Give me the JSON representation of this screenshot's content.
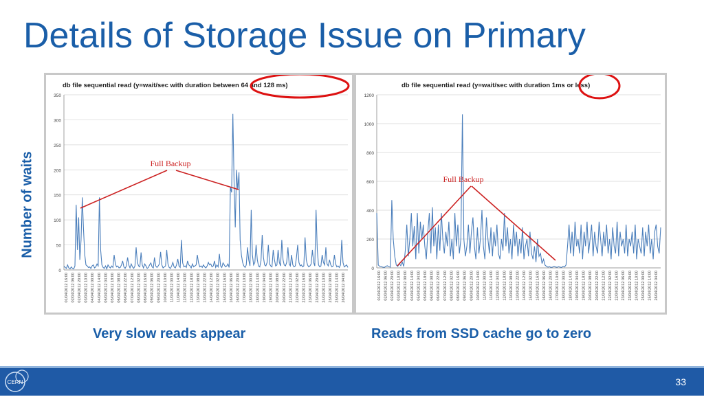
{
  "slide": {
    "title": "Details of Storage Issue on Primary",
    "side_label": "Number of waits",
    "caption_left": "Very slow reads appear",
    "caption_right": "Reads from SSD cache go to zero",
    "page_number": "33",
    "logo_text": "CERN"
  },
  "colors": {
    "accent": "#1a5ea8",
    "series": "#4a7ebb",
    "annotation": "#cc2222"
  },
  "chart_data": [
    {
      "type": "line",
      "title": "db file sequential read (y=wait/sec with duration between 64 and 128 ms)",
      "annotation": "Full Backup",
      "ylim": [
        0,
        350
      ],
      "yticks": [
        0,
        50,
        100,
        150,
        200,
        250,
        300,
        350
      ],
      "grid": true,
      "xticklabels": [
        "01/04/2012 16:00",
        "02/04/2012 06:00",
        "02/04/2012 20:00",
        "03/04/2012 10:00",
        "04/04/2012 00:00",
        "04/04/2012 14:00",
        "05/04/2012 04:00",
        "05/04/2012 18:00",
        "06/04/2012 08:00",
        "06/04/2012 22:00",
        "07/04/2012 12:00",
        "08/04/2012 02:00",
        "08/04/2012 16:00",
        "09/04/2012 06:00",
        "09/04/2012 20:00",
        "10/04/2012 10:00",
        "11/04/2012 00:00",
        "11/04/2012 14:00",
        "12/04/2012 04:00",
        "12/04/2012 18:00",
        "13/04/2012 08:00",
        "13/04/2012 22:00",
        "14/04/2012 12:00",
        "15/04/2012 02:00",
        "15/04/2012 16:00",
        "16/04/2012 06:00",
        "16/04/2012 20:00",
        "17/04/2012 10:00",
        "18/04/2012 00:00",
        "18/04/2012 14:00",
        "19/04/2012 04:00",
        "19/04/2012 18:00",
        "20/04/2012 08:00",
        "20/04/2012 22:00",
        "21/04/2012 12:00",
        "22/04/2012 02:00",
        "22/04/2012 16:00",
        "23/04/2012 06:00",
        "23/04/2012 20:00",
        "24/04/2012 10:00",
        "25/04/2012 00:00",
        "25/04/2012 14:00",
        "26/04/2012 04:00"
      ],
      "values": [
        8,
        5,
        3,
        10,
        4,
        2,
        6,
        3,
        2,
        8,
        130,
        40,
        105,
        20,
        60,
        145,
        80,
        30,
        10,
        8,
        5,
        6,
        3,
        8,
        10,
        4,
        6,
        12,
        8,
        145,
        40,
        10,
        5,
        3,
        8,
        2,
        10,
        6,
        4,
        8,
        5,
        30,
        12,
        6,
        8,
        4,
        5,
        10,
        18,
        6,
        3,
        8,
        25,
        10,
        4,
        12,
        6,
        3,
        8,
        45,
        15,
        8,
        6,
        35,
        10,
        4,
        12,
        8,
        3,
        5,
        10,
        14,
        6,
        4,
        25,
        8,
        5,
        8,
        12,
        36,
        10,
        4,
        6,
        8,
        40,
        12,
        5,
        3,
        8,
        15,
        6,
        4,
        10,
        22,
        8,
        5,
        60,
        14,
        6,
        8,
        5,
        18,
        10,
        8,
        4,
        12,
        6,
        8,
        10,
        30,
        14,
        6,
        8,
        5,
        10,
        6,
        4,
        8,
        15,
        10,
        12,
        6,
        8,
        18,
        5,
        10,
        6,
        32,
        8,
        5,
        14,
        10,
        6,
        8,
        12,
        5,
        165,
        155,
        312,
        180,
        85,
        200,
        160,
        195,
        60,
        30,
        15,
        8,
        5,
        10,
        45,
        20,
        8,
        120,
        30,
        10,
        15,
        50,
        20,
        8,
        6,
        18,
        70,
        25,
        10,
        8,
        15,
        50,
        12,
        8,
        6,
        40,
        20,
        8,
        10,
        40,
        15,
        8,
        60,
        20,
        10,
        8,
        15,
        45,
        12,
        8,
        30,
        10,
        6,
        8,
        25,
        50,
        15,
        8,
        10,
        6,
        8,
        65,
        20,
        10,
        6,
        8,
        12,
        40,
        15,
        8,
        120,
        40,
        10,
        6,
        8,
        30,
        15,
        10,
        45,
        12,
        8,
        20,
        10,
        6,
        8,
        30,
        12,
        6,
        8,
        5,
        10,
        60,
        15,
        6,
        8,
        10,
        5
      ],
      "circle_label": "between 64 and 128 ms"
    },
    {
      "type": "line",
      "title": "db file sequential read (y=wait/sec with duration 1ms or less)",
      "annotation": "Full Backup",
      "ylim": [
        0,
        1200
      ],
      "yticks": [
        0,
        200,
        400,
        600,
        800,
        1000,
        1200
      ],
      "grid": true,
      "xticklabels": [
        "01/04/2012 16:00",
        "02/04/2012 06:00",
        "02/04/2012 20:00",
        "03/04/2012 10:00",
        "04/04/2012 00:00",
        "04/04/2012 14:00",
        "05/04/2012 04:00",
        "05/04/2012 18:00",
        "06/04/2012 08:00",
        "06/04/2012 22:00",
        "07/04/2012 12:00",
        "08/04/2012 02:00",
        "08/04/2012 16:00",
        "09/04/2012 06:00",
        "09/04/2012 20:00",
        "10/04/2012 10:00",
        "11/04/2012 00:00",
        "11/04/2012 14:00",
        "12/04/2012 04:00",
        "12/04/2012 18:00",
        "13/04/2012 08:00",
        "13/04/2012 22:00",
        "14/04/2012 12:00",
        "15/04/2012 02:00",
        "15/04/2012 16:00",
        "16/04/2012 06:00",
        "16/04/2012 20:00",
        "17/04/2012 10:00",
        "18/04/2012 00:00",
        "18/04/2012 14:00",
        "19/04/2012 04:00",
        "19/04/2012 18:00",
        "20/04/2012 08:00",
        "20/04/2012 22:00",
        "21/04/2012 12:00",
        "22/04/2012 02:00",
        "22/04/2012 16:00",
        "23/04/2012 06:00",
        "23/04/2012 20:00",
        "24/04/2012 10:00",
        "25/04/2012 00:00",
        "25/04/2012 14:00",
        "26/04/2012 04:00"
      ],
      "values": [
        380,
        20,
        10,
        8,
        5,
        3,
        10,
        15,
        8,
        5,
        470,
        200,
        80,
        20,
        10,
        30,
        15,
        40,
        10,
        120,
        300,
        80,
        200,
        380,
        150,
        290,
        60,
        380,
        100,
        320,
        200,
        300,
        150,
        60,
        250,
        380,
        100,
        420,
        150,
        280,
        60,
        300,
        120,
        380,
        200,
        100,
        250,
        150,
        320,
        80,
        200,
        60,
        380,
        150,
        300,
        100,
        200,
        1065,
        200,
        80,
        150,
        300,
        100,
        250,
        350,
        150,
        60,
        280,
        100,
        200,
        400,
        150,
        60,
        350,
        200,
        100,
        280,
        80,
        250,
        150,
        300,
        100,
        60,
        200,
        120,
        380,
        150,
        280,
        100,
        200,
        60,
        300,
        150,
        250,
        80,
        200,
        100,
        280,
        60,
        150,
        200,
        80,
        250,
        100,
        60,
        150,
        40,
        200,
        80,
        100,
        30,
        60,
        20,
        10,
        5,
        8,
        3,
        5,
        10,
        6,
        4,
        8,
        5,
        3,
        10,
        6,
        20,
        150,
        300,
        100,
        250,
        80,
        320,
        150,
        200,
        100,
        300,
        60,
        250,
        150,
        320,
        100,
        200,
        300,
        80,
        250,
        150,
        100,
        320,
        200,
        80,
        250,
        150,
        300,
        100,
        200,
        60,
        280,
        150,
        100,
        320,
        80,
        250,
        150,
        200,
        100,
        300,
        80,
        200,
        150,
        250,
        100,
        300,
        60,
        200,
        150,
        100,
        280,
        80,
        250,
        150,
        300,
        100,
        200,
        60,
        250,
        300,
        150,
        100,
        280
      ]
    }
  ]
}
